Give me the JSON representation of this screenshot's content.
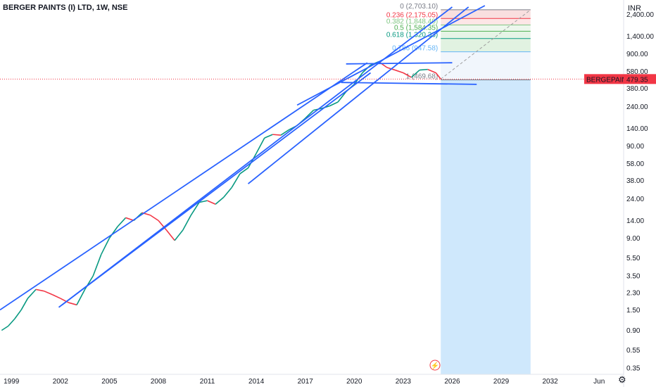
{
  "header": {
    "title": "BERGER PAINTS (I) LTD, 1W, NSE",
    "currency": "INR"
  },
  "price_label": {
    "ticker": "BERGEPAINT",
    "value": "479.35",
    "color": "#f23645"
  },
  "colors": {
    "trendline": "#2962ff",
    "up": "#089981",
    "down": "#f23645",
    "projection": "#bbdefb"
  },
  "icons": {
    "settings": "gear-icon",
    "event": "lightning-icon"
  },
  "fib_levels": [
    {
      "label": "0 (2,703.10)",
      "value": 2703.1,
      "color": "#787b86"
    },
    {
      "label": "0.236 (2,175.05)",
      "value": 2175.05,
      "color": "#f23645"
    },
    {
      "label": "0.382 (1,848.40)",
      "value": 1848.4,
      "color": "#81c784"
    },
    {
      "label": "0.5 (1,584.35)",
      "value": 1584.35,
      "color": "#4caf50"
    },
    {
      "label": "0.618 (1,320.33)",
      "value": 1320.33,
      "color": "#089981"
    },
    {
      "label": "0.786 (947.58)",
      "value": 947.58,
      "color": "#64b5f6"
    },
    {
      "label": "1 (469.68)",
      "value": 469.68,
      "color": "#787b86"
    }
  ],
  "chart_data": {
    "type": "line",
    "title": "BERGER PAINTS (I) LTD, 1W, NSE",
    "ylabel": "INR",
    "y_scale": "log",
    "ylim": [
      0.3,
      3000
    ],
    "xlim": [
      1998.3,
      2036.5
    ],
    "x_ticks": [
      "1999",
      "2002",
      "2005",
      "2008",
      "2011",
      "2014",
      "2017",
      "2020",
      "2023",
      "2026",
      "2029",
      "2032",
      "Jun"
    ],
    "y_ticks": [
      "2,400.00",
      "1,400.00",
      "900.00",
      "580.00",
      "380.00",
      "240.00",
      "140.00",
      "90.00",
      "58.00",
      "38.00",
      "24.00",
      "14.00",
      "9.00",
      "5.50",
      "3.50",
      "2.30",
      "1.50",
      "0.90",
      "0.55",
      "0.35"
    ],
    "last_price": 479.35,
    "series": [
      {
        "x": [
          1998.4,
          1998.8,
          1999.2,
          1999.6,
          2000.0,
          2000.5,
          2001.0,
          2001.5,
          2002.0,
          2002.5,
          2003.0,
          2003.5,
          2004.0,
          2004.5,
          2005.0,
          2005.5,
          2006.0,
          2006.5,
          2007.0,
          2007.5,
          2008.0,
          2008.5,
          2009.0,
          2009.5,
          2010.0,
          2010.5,
          2011.0,
          2011.5,
          2012.0,
          2012.5,
          2013.0,
          2013.5,
          2014.0,
          2014.5,
          2015.0,
          2015.5,
          2016.0,
          2016.5,
          2017.0,
          2017.5,
          2018.0,
          2018.5,
          2019.0,
          2019.5,
          2020.0,
          2020.5,
          2021.0,
          2021.5,
          2022.0,
          2022.5,
          2023.0,
          2023.5,
          2024.0,
          2024.5,
          2025.0,
          2025.3
        ],
        "values": [
          0.9,
          1.0,
          1.2,
          1.5,
          2.0,
          2.5,
          2.4,
          2.2,
          2.0,
          1.8,
          1.7,
          2.5,
          3.5,
          6,
          9,
          12,
          15,
          14,
          17,
          16,
          14,
          11,
          8.5,
          11,
          16,
          22,
          23,
          21,
          25,
          32,
          45,
          52,
          75,
          110,
          120,
          118,
          135,
          150,
          180,
          220,
          230,
          245,
          270,
          350,
          420,
          560,
          680,
          740,
          640,
          600,
          560,
          500,
          600,
          610,
          560,
          479
        ]
      }
    ]
  }
}
